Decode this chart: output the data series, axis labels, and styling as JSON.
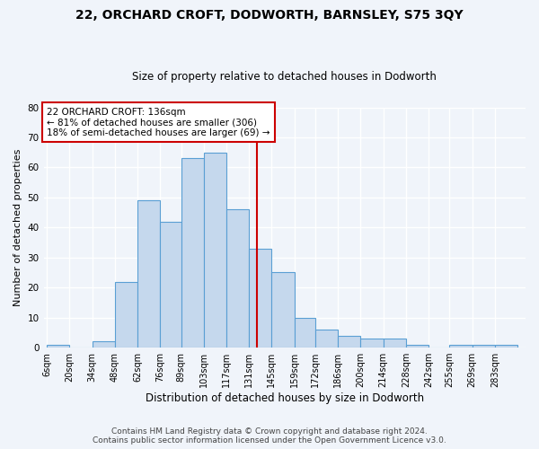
{
  "title1": "22, ORCHARD CROFT, DODWORTH, BARNSLEY, S75 3QY",
  "title2": "Size of property relative to detached houses in Dodworth",
  "xlabel": "Distribution of detached houses by size in Dodworth",
  "ylabel": "Number of detached properties",
  "bin_labels": [
    "6sqm",
    "20sqm",
    "34sqm",
    "48sqm",
    "62sqm",
    "76sqm",
    "89sqm",
    "103sqm",
    "117sqm",
    "131sqm",
    "145sqm",
    "159sqm",
    "172sqm",
    "186sqm",
    "200sqm",
    "214sqm",
    "228sqm",
    "242sqm",
    "255sqm",
    "269sqm",
    "283sqm"
  ],
  "bin_edges": [
    6,
    20,
    34,
    48,
    62,
    76,
    89,
    103,
    117,
    131,
    145,
    159,
    172,
    186,
    200,
    214,
    228,
    242,
    255,
    269,
    283,
    297
  ],
  "counts": [
    1,
    0,
    2,
    22,
    49,
    42,
    63,
    65,
    46,
    33,
    25,
    10,
    6,
    4,
    3,
    3,
    1,
    0,
    1,
    1,
    1
  ],
  "bar_color": "#c5d8ed",
  "bar_edge_color": "#5a9fd4",
  "vline_x": 136,
  "vline_color": "#cc0000",
  "annotation_text": "22 ORCHARD CROFT: 136sqm\n← 81% of detached houses are smaller (306)\n18% of semi-detached houses are larger (69) →",
  "annotation_box_color": "#cc0000",
  "ylim": [
    0,
    80
  ],
  "yticks": [
    0,
    10,
    20,
    30,
    40,
    50,
    60,
    70,
    80
  ],
  "footnote1": "Contains HM Land Registry data © Crown copyright and database right 2024.",
  "footnote2": "Contains public sector information licensed under the Open Government Licence v3.0.",
  "bg_color": "#f0f4fa",
  "grid_color": "#ffffff",
  "title1_fontsize": 10,
  "title2_fontsize": 8.5,
  "xlabel_fontsize": 8.5,
  "ylabel_fontsize": 8,
  "footnote_fontsize": 6.5,
  "tick_fontsize": 7,
  "annot_fontsize": 7.5
}
